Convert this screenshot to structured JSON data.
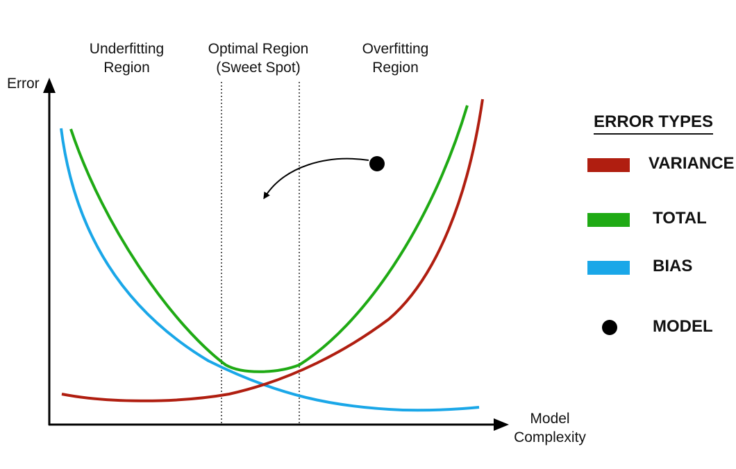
{
  "axes": {
    "y_label": "Error",
    "x_label_line1": "Model",
    "x_label_line2": "Complexity"
  },
  "regions": {
    "underfitting": {
      "line1": "Underfitting",
      "line2": "Region"
    },
    "optimal": {
      "line1": "Optimal Region",
      "line2": "(Sweet Spot)"
    },
    "overfitting": {
      "line1": "Overfitting",
      "line2": "Region"
    }
  },
  "legend": {
    "title": "ERROR TYPES",
    "items": [
      {
        "label": "VARIANCE",
        "color": "#b01e10"
      },
      {
        "label": "TOTAL",
        "color": "#1faa14"
      },
      {
        "label": "BIAS",
        "color": "#1aa7e8"
      },
      {
        "label": "MODEL",
        "color": "#000000"
      }
    ]
  },
  "colors": {
    "axis": "#000000",
    "variance": "#b01e10",
    "total": "#1faa14",
    "bias": "#1aa7e8",
    "model": "#000000",
    "divider": "#333333"
  }
}
